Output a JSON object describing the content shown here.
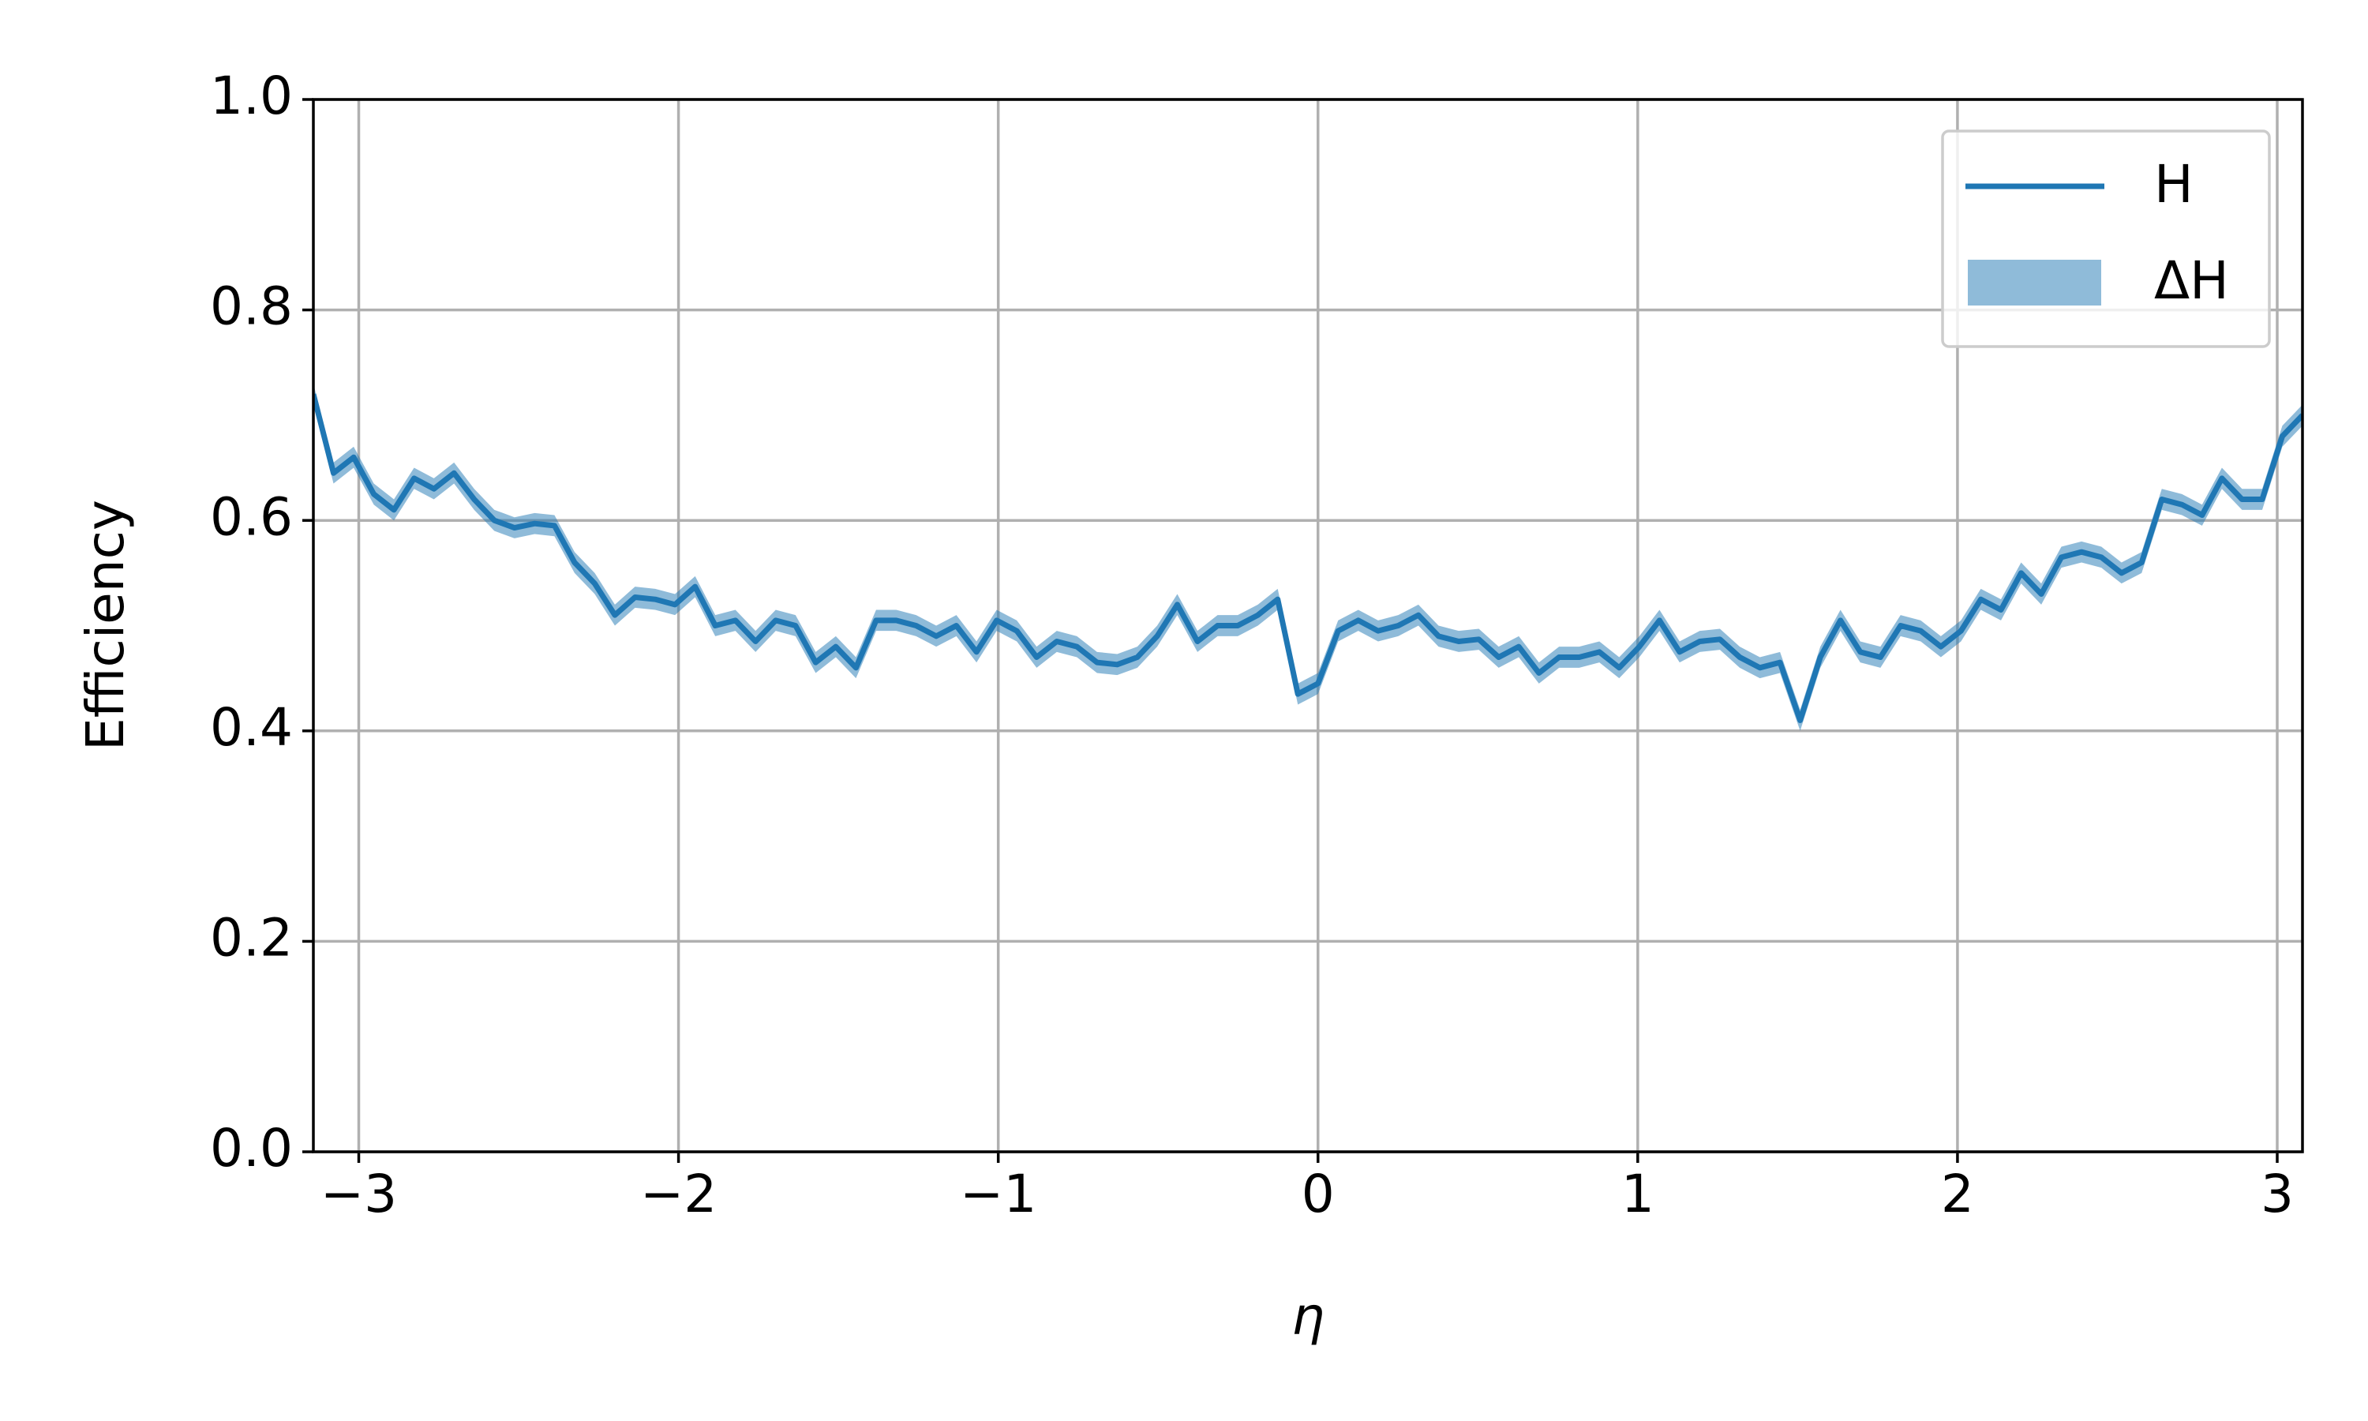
{
  "chart_data": {
    "type": "line",
    "xlabel": "η",
    "ylabel": "Efficiency",
    "xlim": [
      -3.142,
      3.079
    ],
    "ylim": [
      0,
      1
    ],
    "xticks": [
      {
        "value": -3,
        "label": "−3"
      },
      {
        "value": -2,
        "label": "−2"
      },
      {
        "value": -1,
        "label": "−1"
      },
      0,
      1,
      2,
      3
    ],
    "yticks": [
      {
        "value": 0,
        "label": "0.0"
      },
      0.2,
      0.4,
      0.6,
      0.8,
      {
        "value": 1,
        "label": "1.0"
      }
    ],
    "grid": true,
    "legend": "upper right",
    "x": [
      -3.142,
      -3.079,
      -3.016,
      -2.953,
      -2.89,
      -2.827,
      -2.765,
      -2.702,
      -2.639,
      -2.576,
      -2.513,
      -2.45,
      -2.388,
      -2.325,
      -2.262,
      -2.199,
      -2.136,
      -2.073,
      -2.011,
      -1.948,
      -1.885,
      -1.822,
      -1.759,
      -1.696,
      -1.634,
      -1.571,
      -1.508,
      -1.445,
      -1.382,
      -1.319,
      -1.257,
      -1.194,
      -1.131,
      -1.068,
      -1.005,
      -0.942,
      -0.88,
      -0.817,
      -0.754,
      -0.691,
      -0.628,
      -0.565,
      -0.503,
      -0.44,
      -0.377,
      -0.314,
      -0.251,
      -0.188,
      -0.126,
      -0.063,
      0.0,
      0.063,
      0.126,
      0.188,
      0.251,
      0.314,
      0.377,
      0.44,
      0.503,
      0.565,
      0.628,
      0.691,
      0.754,
      0.817,
      0.88,
      0.942,
      1.005,
      1.068,
      1.131,
      1.194,
      1.257,
      1.319,
      1.382,
      1.445,
      1.508,
      1.571,
      1.634,
      1.696,
      1.759,
      1.822,
      1.885,
      1.948,
      2.011,
      2.073,
      2.136,
      2.199,
      2.262,
      2.325,
      2.388,
      2.45,
      2.513,
      2.576,
      2.639,
      2.702,
      2.765,
      2.827,
      2.89,
      2.953,
      3.016,
      3.079
    ],
    "series": [
      {
        "name": "H",
        "color": "#1f77b4",
        "values": [
          0.72,
          0.645,
          0.66,
          0.625,
          0.61,
          0.64,
          0.63,
          0.645,
          0.62,
          0.6,
          0.593,
          0.597,
          0.595,
          0.56,
          0.54,
          0.51,
          0.527,
          0.525,
          0.52,
          0.537,
          0.5,
          0.505,
          0.485,
          0.505,
          0.5,
          0.465,
          0.48,
          0.46,
          0.505,
          0.505,
          0.5,
          0.49,
          0.5,
          0.475,
          0.505,
          0.495,
          0.47,
          0.485,
          0.48,
          0.465,
          0.463,
          0.47,
          0.49,
          0.52,
          0.485,
          0.5,
          0.5,
          0.51,
          0.525,
          0.435,
          0.445,
          0.495,
          0.505,
          0.495,
          0.5,
          0.51,
          0.49,
          0.485,
          0.487,
          0.47,
          0.48,
          0.455,
          0.47,
          0.47,
          0.475,
          0.46,
          0.48,
          0.505,
          0.475,
          0.485,
          0.487,
          0.47,
          0.46,
          0.465,
          0.41,
          0.47,
          0.505,
          0.475,
          0.47,
          0.5,
          0.495,
          0.48,
          0.495,
          0.525,
          0.515,
          0.55,
          0.53,
          0.565,
          0.57,
          0.565,
          0.55,
          0.56,
          0.62,
          0.615,
          0.605,
          0.64,
          0.62,
          0.62,
          0.68,
          0.7
        ]
      }
    ],
    "band": {
      "name": "ΔH",
      "color": "#1f77b4",
      "opacity": 0.5,
      "errors": [
        0.01,
        0.01,
        0.01,
        0.01,
        0.01,
        0.01,
        0.01,
        0.01,
        0.01,
        0.01,
        0.01,
        0.01,
        0.01,
        0.01,
        0.01,
        0.01,
        0.01,
        0.01,
        0.01,
        0.01,
        0.01,
        0.01,
        0.01,
        0.01,
        0.01,
        0.01,
        0.01,
        0.01,
        0.01,
        0.01,
        0.01,
        0.01,
        0.01,
        0.01,
        0.01,
        0.01,
        0.01,
        0.01,
        0.01,
        0.01,
        0.01,
        0.01,
        0.01,
        0.01,
        0.01,
        0.01,
        0.01,
        0.01,
        0.01,
        0.01,
        0.01,
        0.01,
        0.01,
        0.01,
        0.01,
        0.01,
        0.01,
        0.01,
        0.01,
        0.01,
        0.01,
        0.01,
        0.01,
        0.01,
        0.01,
        0.01,
        0.01,
        0.01,
        0.01,
        0.01,
        0.01,
        0.01,
        0.01,
        0.01,
        0.01,
        0.01,
        0.01,
        0.01,
        0.01,
        0.01,
        0.01,
        0.01,
        0.01,
        0.01,
        0.01,
        0.01,
        0.01,
        0.01,
        0.01,
        0.01,
        0.01,
        0.01,
        0.01,
        0.01,
        0.01,
        0.01,
        0.01,
        0.01,
        0.01,
        0.01
      ]
    }
  }
}
